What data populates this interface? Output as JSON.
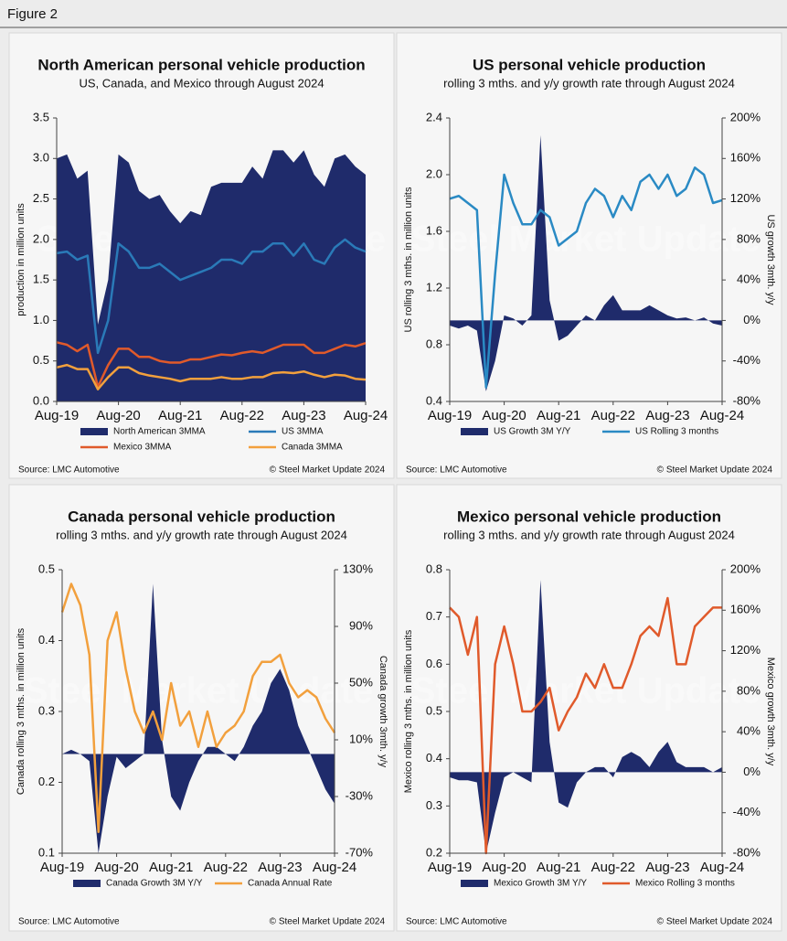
{
  "figure": "Figure 2",
  "watermark": "Steel Market Update",
  "chart_data": [
    {
      "type": "combo",
      "title": "North American personal vehicle production",
      "subtitle": "US, Canada, and Mexico through August 2024",
      "ylabel": "production in million units",
      "source": "Source: LMC Automotive",
      "credit": "© Steel Market Update 2024",
      "categories": [
        "Aug-19",
        null,
        null,
        null,
        null,
        null,
        "Aug-20",
        null,
        null,
        null,
        null,
        null,
        "Aug-21",
        null,
        null,
        null,
        null,
        null,
        "Aug-22",
        null,
        null,
        null,
        null,
        null,
        "Aug-23",
        null,
        null,
        null,
        null,
        null,
        "Aug-24"
      ],
      "ylim": [
        0,
        3.5
      ],
      "yticks": [
        {
          "value": 0,
          "label": "0.0"
        },
        0.5,
        {
          "value": 1,
          "label": "1.0"
        },
        1.5,
        {
          "value": 2,
          "label": "2.0"
        },
        2.5,
        {
          "value": 3,
          "label": "3.0"
        },
        3.5
      ],
      "grid": false,
      "series": [
        {
          "name": "North American 3MMA",
          "kind": "area",
          "color": "#1f2b6b",
          "values": [
            3.0,
            3.05,
            2.75,
            2.85,
            0.95,
            1.5,
            3.05,
            2.95,
            2.6,
            2.5,
            2.55,
            2.35,
            2.2,
            2.35,
            2.3,
            2.65,
            2.7,
            2.7,
            2.7,
            2.9,
            2.75,
            3.1,
            3.1,
            2.95,
            3.1,
            2.8,
            2.65,
            3.0,
            3.05,
            2.9,
            2.8
          ]
        },
        {
          "name": "US 3MMA",
          "kind": "line",
          "color": "#2a7ab8",
          "values": [
            1.83,
            1.85,
            1.75,
            1.8,
            0.6,
            1.0,
            1.95,
            1.85,
            1.65,
            1.65,
            1.7,
            1.6,
            1.5,
            1.55,
            1.6,
            1.65,
            1.75,
            1.75,
            1.7,
            1.85,
            1.85,
            1.95,
            1.95,
            1.8,
            1.95,
            1.75,
            1.7,
            1.9,
            2.0,
            1.9,
            1.85
          ]
        },
        {
          "name": "Mexico 3MMA",
          "kind": "line",
          "color": "#e05a2b",
          "values": [
            0.73,
            0.7,
            0.62,
            0.7,
            0.18,
            0.45,
            0.65,
            0.65,
            0.55,
            0.55,
            0.5,
            0.48,
            0.48,
            0.52,
            0.52,
            0.55,
            0.58,
            0.57,
            0.6,
            0.62,
            0.6,
            0.65,
            0.7,
            0.7,
            0.7,
            0.6,
            0.6,
            0.65,
            0.7,
            0.68,
            0.72
          ]
        },
        {
          "name": "Canada 3MMA",
          "kind": "line",
          "color": "#f2a03d",
          "values": [
            0.42,
            0.45,
            0.4,
            0.4,
            0.15,
            0.3,
            0.42,
            0.42,
            0.35,
            0.32,
            0.3,
            0.28,
            0.25,
            0.28,
            0.28,
            0.28,
            0.3,
            0.28,
            0.28,
            0.3,
            0.3,
            0.35,
            0.36,
            0.35,
            0.37,
            0.33,
            0.3,
            0.33,
            0.32,
            0.28,
            0.27
          ]
        }
      ]
    },
    {
      "type": "combo",
      "title": "US personal vehicle production",
      "subtitle": "rolling 3 mths. and y/y growth rate through August 2024",
      "ylabel": "US rolling 3 mths. in million units",
      "y2label": "US growth 3mth. y/y",
      "source": "Source: LMC Automotive",
      "credit": "© Steel Market Update 2024",
      "categories": [
        "Aug-19",
        null,
        null,
        null,
        null,
        null,
        "Aug-20",
        null,
        null,
        null,
        null,
        null,
        "Aug-21",
        null,
        null,
        null,
        null,
        null,
        "Aug-22",
        null,
        null,
        null,
        null,
        null,
        "Aug-23",
        null,
        null,
        null,
        null,
        null,
        "Aug-24"
      ],
      "ylim": [
        0.4,
        2.4
      ],
      "yticks": [
        0.4,
        0.8,
        1.2,
        1.6,
        {
          "value": 2,
          "label": "2.0"
        },
        2.4
      ],
      "y2lim": [
        -80,
        200
      ],
      "y2ticks": [
        {
          "value": -80,
          "label": "-80%"
        },
        {
          "value": -40,
          "label": "-40%"
        },
        {
          "value": 0,
          "label": "0%"
        },
        {
          "value": 40,
          "label": "40%"
        },
        {
          "value": 80,
          "label": "80%"
        },
        {
          "value": 120,
          "label": "120%"
        },
        {
          "value": 160,
          "label": "160%"
        },
        {
          "value": 200,
          "label": "200%"
        }
      ],
      "grid": false,
      "series": [
        {
          "name": "US Growth 3M Y/Y",
          "kind": "area",
          "axis": "y2",
          "color": "#1f2b6b",
          "values": [
            -5,
            -8,
            -5,
            -10,
            -70,
            -40,
            5,
            2,
            -5,
            5,
            183,
            20,
            -20,
            -15,
            -5,
            5,
            0,
            15,
            25,
            10,
            10,
            10,
            15,
            10,
            5,
            2,
            3,
            0,
            3,
            -3,
            -5
          ]
        },
        {
          "name": "US Rolling 3 months",
          "kind": "line",
          "color": "#2a8ac4",
          "values": [
            1.83,
            1.85,
            1.8,
            1.75,
            0.5,
            1.3,
            2.0,
            1.8,
            1.65,
            1.65,
            1.75,
            1.7,
            1.5,
            1.55,
            1.6,
            1.8,
            1.9,
            1.85,
            1.7,
            1.85,
            1.75,
            1.95,
            2.0,
            1.9,
            2.0,
            1.85,
            1.9,
            2.05,
            2.0,
            1.8,
            1.82
          ]
        }
      ]
    },
    {
      "type": "combo",
      "title": "Canada personal vehicle production",
      "subtitle": "rolling 3 mths. and y/y growth rate through August 2024",
      "ylabel": "Canada rolling 3 mths. in million units",
      "y2label": "Canada growth 3mth. y/y",
      "source": "Source: LMC Automotive",
      "credit": "© Steel Market Update 2024",
      "categories": [
        "Aug-19",
        null,
        null,
        null,
        null,
        null,
        "Aug-20",
        null,
        null,
        null,
        null,
        null,
        "Aug-21",
        null,
        null,
        null,
        null,
        null,
        "Aug-22",
        null,
        null,
        null,
        null,
        null,
        "Aug-23",
        null,
        null,
        null,
        null,
        null,
        "Aug-24"
      ],
      "ylim": [
        0.1,
        0.5
      ],
      "yticks": [
        0.1,
        0.2,
        0.3,
        0.4,
        0.5
      ],
      "y2lim": [
        -70,
        130
      ],
      "y2ticks": [
        {
          "value": -70,
          "label": "-70%"
        },
        {
          "value": -30,
          "label": "-30%"
        },
        {
          "value": 10,
          "label": "10%"
        },
        {
          "value": 50,
          "label": "50%"
        },
        {
          "value": 90,
          "label": "90%"
        },
        {
          "value": 130,
          "label": "130%"
        }
      ],
      "grid": false,
      "series": [
        {
          "name": "Canada Growth 3M Y/Y",
          "kind": "area",
          "axis": "y2",
          "color": "#1f2b6b",
          "values": [
            0,
            3,
            0,
            -5,
            -70,
            -30,
            -2,
            -10,
            -5,
            0,
            120,
            10,
            -30,
            -40,
            -20,
            -5,
            5,
            5,
            0,
            -5,
            5,
            20,
            30,
            50,
            60,
            45,
            20,
            5,
            -10,
            -25,
            -35
          ]
        },
        {
          "name": "Canada Annual Rate",
          "kind": "line",
          "color": "#f2a03d",
          "values": [
            0.44,
            0.48,
            0.45,
            0.38,
            0.13,
            0.4,
            0.44,
            0.36,
            0.3,
            0.27,
            0.3,
            0.26,
            0.34,
            0.28,
            0.3,
            0.25,
            0.3,
            0.25,
            0.27,
            0.28,
            0.3,
            0.35,
            0.37,
            0.37,
            0.38,
            0.34,
            0.32,
            0.33,
            0.32,
            0.29,
            0.27
          ]
        }
      ]
    },
    {
      "type": "combo",
      "title": "Mexico personal vehicle production",
      "subtitle": "rolling 3 mths. and y/y growth rate through August 2024",
      "ylabel": "Mexico rolling 3 mths. in million units",
      "y2label": "Mexico growth 3mth. y/y",
      "source": "Source: LMC Automotive",
      "credit": "© Steel Market Update 2024",
      "categories": [
        "Aug-19",
        null,
        null,
        null,
        null,
        null,
        "Aug-20",
        null,
        null,
        null,
        null,
        null,
        "Aug-21",
        null,
        null,
        null,
        null,
        null,
        "Aug-22",
        null,
        null,
        null,
        null,
        null,
        "Aug-23",
        null,
        null,
        null,
        null,
        null,
        "Aug-24"
      ],
      "ylim": [
        0.2,
        0.8
      ],
      "yticks": [
        0.2,
        0.3,
        0.4,
        0.5,
        0.6,
        0.7,
        0.8
      ],
      "y2lim": [
        -80,
        200
      ],
      "y2ticks": [
        {
          "value": -80,
          "label": "-80%"
        },
        {
          "value": -40,
          "label": "-40%"
        },
        {
          "value": 0,
          "label": "0%"
        },
        {
          "value": 40,
          "label": "40%"
        },
        {
          "value": 80,
          "label": "80%"
        },
        {
          "value": 120,
          "label": "120%"
        },
        {
          "value": 160,
          "label": "160%"
        },
        {
          "value": 200,
          "label": "200%"
        }
      ],
      "grid": false,
      "series": [
        {
          "name": "Mexico Growth 3M Y/Y",
          "kind": "area",
          "axis": "y2",
          "color": "#1f2b6b",
          "values": [
            -5,
            -8,
            -8,
            -10,
            -80,
            -40,
            -5,
            0,
            -5,
            -10,
            190,
            30,
            -30,
            -35,
            -10,
            0,
            5,
            5,
            -5,
            15,
            20,
            15,
            5,
            20,
            30,
            10,
            5,
            5,
            5,
            0,
            5
          ]
        },
        {
          "name": "Mexico Rolling 3 months",
          "kind": "line",
          "color": "#e05a2b",
          "values": [
            0.72,
            0.7,
            0.62,
            0.7,
            0.2,
            0.6,
            0.68,
            0.6,
            0.5,
            0.5,
            0.52,
            0.55,
            0.46,
            0.5,
            0.53,
            0.58,
            0.55,
            0.6,
            0.55,
            0.55,
            0.6,
            0.66,
            0.68,
            0.66,
            0.74,
            0.6,
            0.6,
            0.68,
            0.7,
            0.72,
            0.72
          ]
        }
      ]
    }
  ]
}
